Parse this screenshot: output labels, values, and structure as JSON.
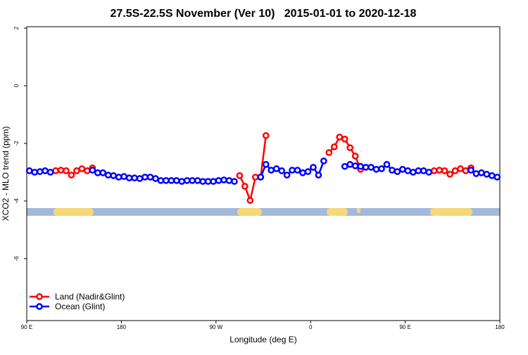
{
  "chart_data": {
    "type": "line",
    "title": "27.5S-22.5S November (Ver 10)   2015-01-01 to 2020-12-18",
    "x_label": "Longitude (deg E)",
    "y_label": "XCO2 - MLO trend (ppm)",
    "xlim": [
      90,
      540
    ],
    "xticks": [
      {
        "value": 90,
        "label": "90 E"
      },
      180,
      {
        "value": 270,
        "label": "90 W"
      },
      {
        "value": 360,
        "label": "0"
      },
      {
        "value": 450,
        "label": "90 E"
      },
      {
        "value": 540,
        "label": "180"
      }
    ],
    "ylim": [
      -8.15,
      2.05
    ],
    "yticks": [
      2,
      0,
      -2,
      -4,
      -6
    ],
    "legend": "bottom-left",
    "x": [
      92.5,
      97.5,
      102.5,
      107.5,
      112.5,
      117.5,
      122.5,
      127.5,
      132.5,
      137.5,
      142.5,
      147.5,
      152.5,
      157.5,
      162.5,
      167.5,
      172.5,
      177.5,
      182.5,
      187.5,
      192.5,
      197.5,
      202.5,
      207.5,
      212.5,
      217.5,
      222.5,
      227.5,
      232.5,
      237.5,
      242.5,
      247.5,
      252.5,
      257.5,
      262.5,
      267.5,
      272.5,
      277.5,
      282.5,
      287.5,
      292.5,
      297.5,
      302.5,
      307.5,
      312.5,
      317.5,
      322.5,
      327.5,
      332.5,
      337.5,
      342.5,
      347.5,
      352.5,
      357.5,
      362.5,
      367.5,
      372.5,
      377.5,
      382.5,
      387.5,
      392.5,
      397.5,
      402.5,
      407.5,
      412.5,
      417.5,
      422.5,
      427.5,
      432.5,
      437.5,
      442.5,
      447.5,
      452.5,
      457.5,
      462.5,
      467.5,
      472.5,
      477.5,
      482.5,
      487.5,
      492.5,
      497.5,
      502.5,
      507.5,
      512.5,
      517.5,
      522.5,
      527.5,
      532.5,
      537.5
    ],
    "series": [
      {
        "name": "Land (Nadir&Glint)",
        "color": "#ff0000",
        "values": [
          null,
          null,
          null,
          null,
          null,
          -2.95,
          -2.93,
          -2.95,
          -3.1,
          -2.95,
          -2.88,
          -2.95,
          -2.85,
          null,
          null,
          null,
          null,
          null,
          null,
          null,
          null,
          null,
          null,
          null,
          null,
          null,
          null,
          null,
          null,
          null,
          null,
          null,
          null,
          null,
          null,
          null,
          null,
          null,
          null,
          null,
          -3.12,
          -3.49,
          -3.98,
          -3.17,
          -3.17,
          -1.73,
          null,
          null,
          null,
          null,
          null,
          null,
          null,
          null,
          null,
          null,
          null,
          -2.32,
          -2.12,
          -1.78,
          -1.85,
          -2.15,
          -2.44,
          -2.9,
          null,
          null,
          null,
          null,
          null,
          null,
          null,
          null,
          null,
          null,
          null,
          null,
          null,
          -2.95,
          -2.93,
          -2.95,
          -3.07,
          -2.95,
          -2.88,
          -2.95,
          -2.85,
          null,
          null,
          null,
          null,
          null
        ]
      },
      {
        "name": "Ocean (Glint)",
        "color": "#0000ff",
        "values": [
          -2.95,
          -3.0,
          -2.98,
          -2.95,
          -3.0,
          null,
          null,
          null,
          null,
          null,
          null,
          null,
          -2.93,
          -3.02,
          -3.02,
          -3.1,
          -3.12,
          -3.17,
          -3.15,
          -3.2,
          -3.2,
          -3.22,
          -3.17,
          -3.17,
          -3.22,
          -3.29,
          -3.29,
          -3.29,
          -3.29,
          -3.32,
          -3.29,
          -3.29,
          -3.29,
          -3.32,
          -3.32,
          -3.32,
          -3.29,
          -3.27,
          -3.29,
          -3.32,
          null,
          null,
          null,
          null,
          -3.17,
          -2.73,
          -2.93,
          -2.88,
          -2.95,
          -3.1,
          -2.93,
          -2.93,
          -3.02,
          -2.98,
          -2.83,
          -3.1,
          -2.61,
          null,
          null,
          null,
          -2.8,
          -2.73,
          -2.78,
          -2.8,
          -2.83,
          -2.83,
          -2.9,
          -2.88,
          -2.73,
          -2.93,
          -2.98,
          -2.9,
          -2.95,
          -3.0,
          -2.95,
          -2.95,
          -3.0,
          null,
          null,
          null,
          null,
          null,
          null,
          null,
          -2.93,
          -3.05,
          -3.02,
          -3.07,
          -3.12,
          -3.17
        ]
      }
    ]
  }
}
